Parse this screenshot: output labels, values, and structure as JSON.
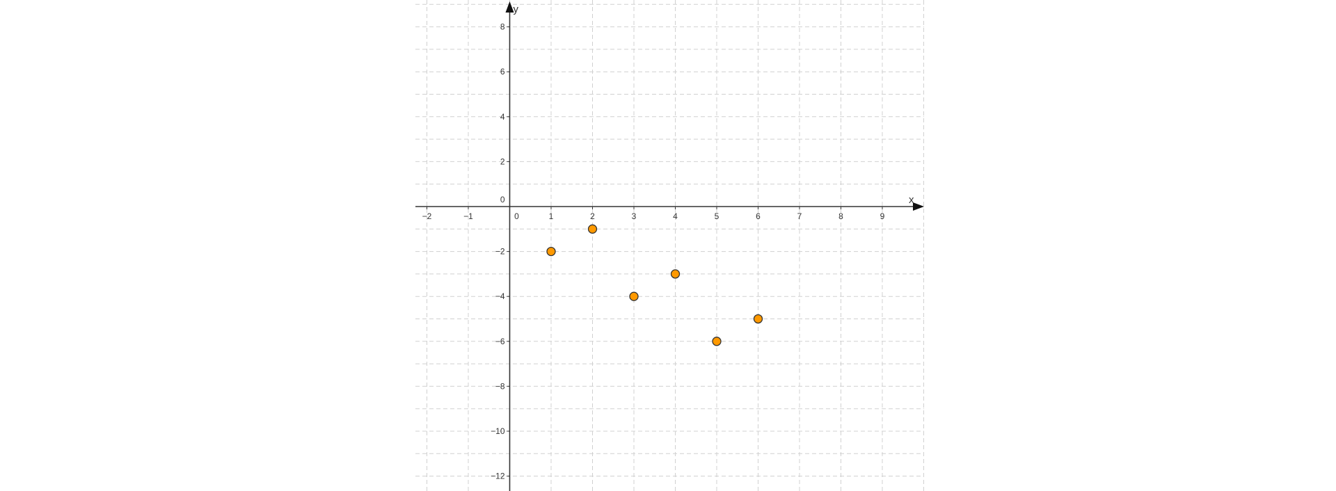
{
  "chart_data": {
    "type": "scatter",
    "title": "",
    "xlabel": "x",
    "ylabel": "y",
    "xlim": [
      -2.28,
      10.0
    ],
    "ylim": [
      -12.66,
      9.2
    ],
    "grid": true,
    "grid_step": 1,
    "x_ticks": [
      -2,
      -1,
      0,
      1,
      2,
      3,
      4,
      5,
      6,
      7,
      8,
      9
    ],
    "x_tick_labels": [
      "−2",
      "−1",
      "0",
      "1",
      "2",
      "3",
      "4",
      "5",
      "6",
      "7",
      "8",
      "9"
    ],
    "y_ticks": [
      8,
      6,
      4,
      2,
      0,
      -2,
      -4,
      -6,
      -8,
      -10,
      -12
    ],
    "y_tick_labels": [
      "8",
      "6",
      "4",
      "2",
      "0",
      "−2",
      "−4",
      "−6",
      "−8",
      "−10",
      "−12"
    ],
    "points": [
      {
        "x": 1,
        "y": -2
      },
      {
        "x": 2,
        "y": -1
      },
      {
        "x": 3,
        "y": -4
      },
      {
        "x": 4,
        "y": -3
      },
      {
        "x": 5,
        "y": -6
      },
      {
        "x": 6,
        "y": -5
      }
    ],
    "point_color": "#FF9900",
    "point_stroke": "#333333"
  }
}
